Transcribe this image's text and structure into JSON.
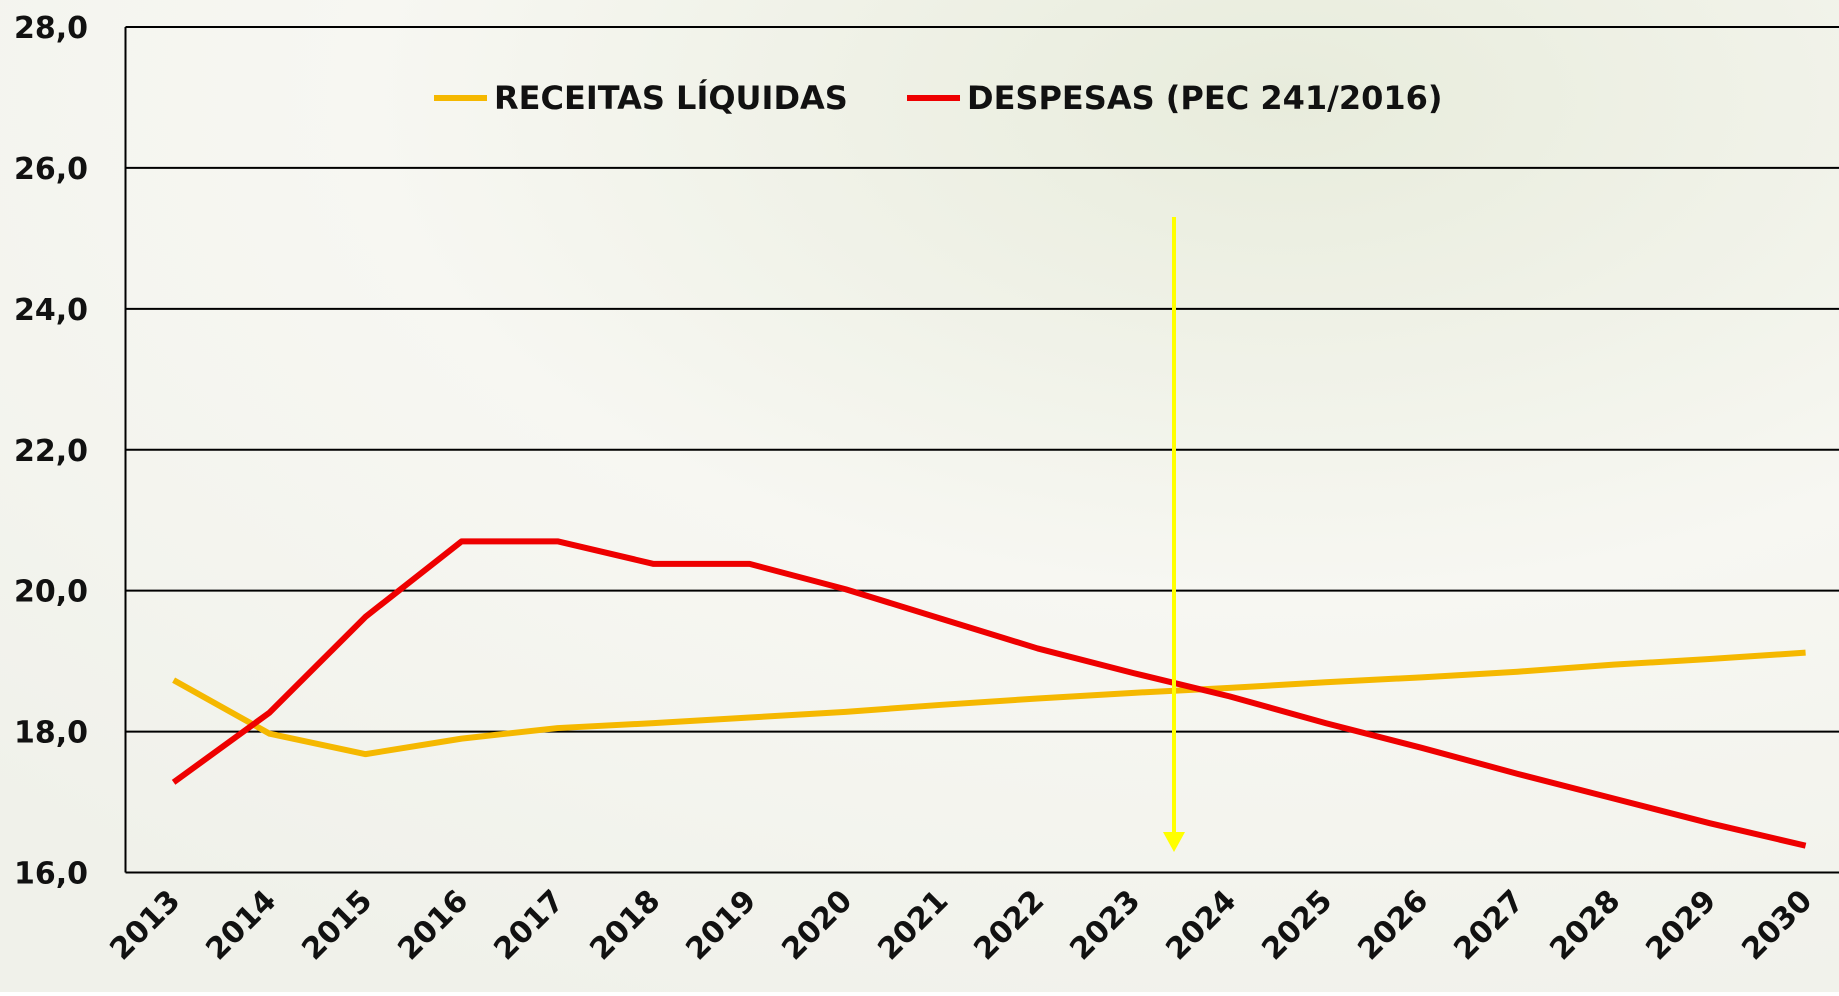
{
  "chart_data": {
    "type": "line",
    "categories": [
      "2013",
      "2014",
      "2015",
      "2016",
      "2017",
      "2018",
      "2019",
      "2020",
      "2021",
      "2022",
      "2023",
      "2024",
      "2025",
      "2026",
      "2027",
      "2028",
      "2029",
      "2030"
    ],
    "series": [
      {
        "name": "RECEITAS LÍQUIDAS",
        "color": "#f5b800",
        "values": [
          18.73,
          17.97,
          17.68,
          17.9,
          18.05,
          18.12,
          18.2,
          18.28,
          18.38,
          18.47,
          18.55,
          18.62,
          18.7,
          18.77,
          18.85,
          18.95,
          19.03,
          19.12
        ]
      },
      {
        "name": "DESPESAS (PEC 241/2016)",
        "color": "#ee0000",
        "values": [
          17.28,
          18.27,
          19.63,
          20.7,
          20.7,
          20.38,
          20.38,
          20.02,
          19.6,
          19.18,
          18.83,
          18.5,
          18.12,
          17.77,
          17.4,
          17.05,
          16.7,
          16.38
        ]
      }
    ],
    "ylim": [
      16,
      28
    ],
    "yticks": [
      {
        "value": 16,
        "label": "16,0"
      },
      {
        "value": 18,
        "label": "18,0"
      },
      {
        "value": 20,
        "label": "20,0"
      },
      {
        "value": 22,
        "label": "22,0"
      },
      {
        "value": 24,
        "label": "24,0"
      },
      {
        "value": 26,
        "label": "26,0"
      },
      {
        "value": 28,
        "label": "28,0"
      }
    ],
    "grid": true
  }
}
